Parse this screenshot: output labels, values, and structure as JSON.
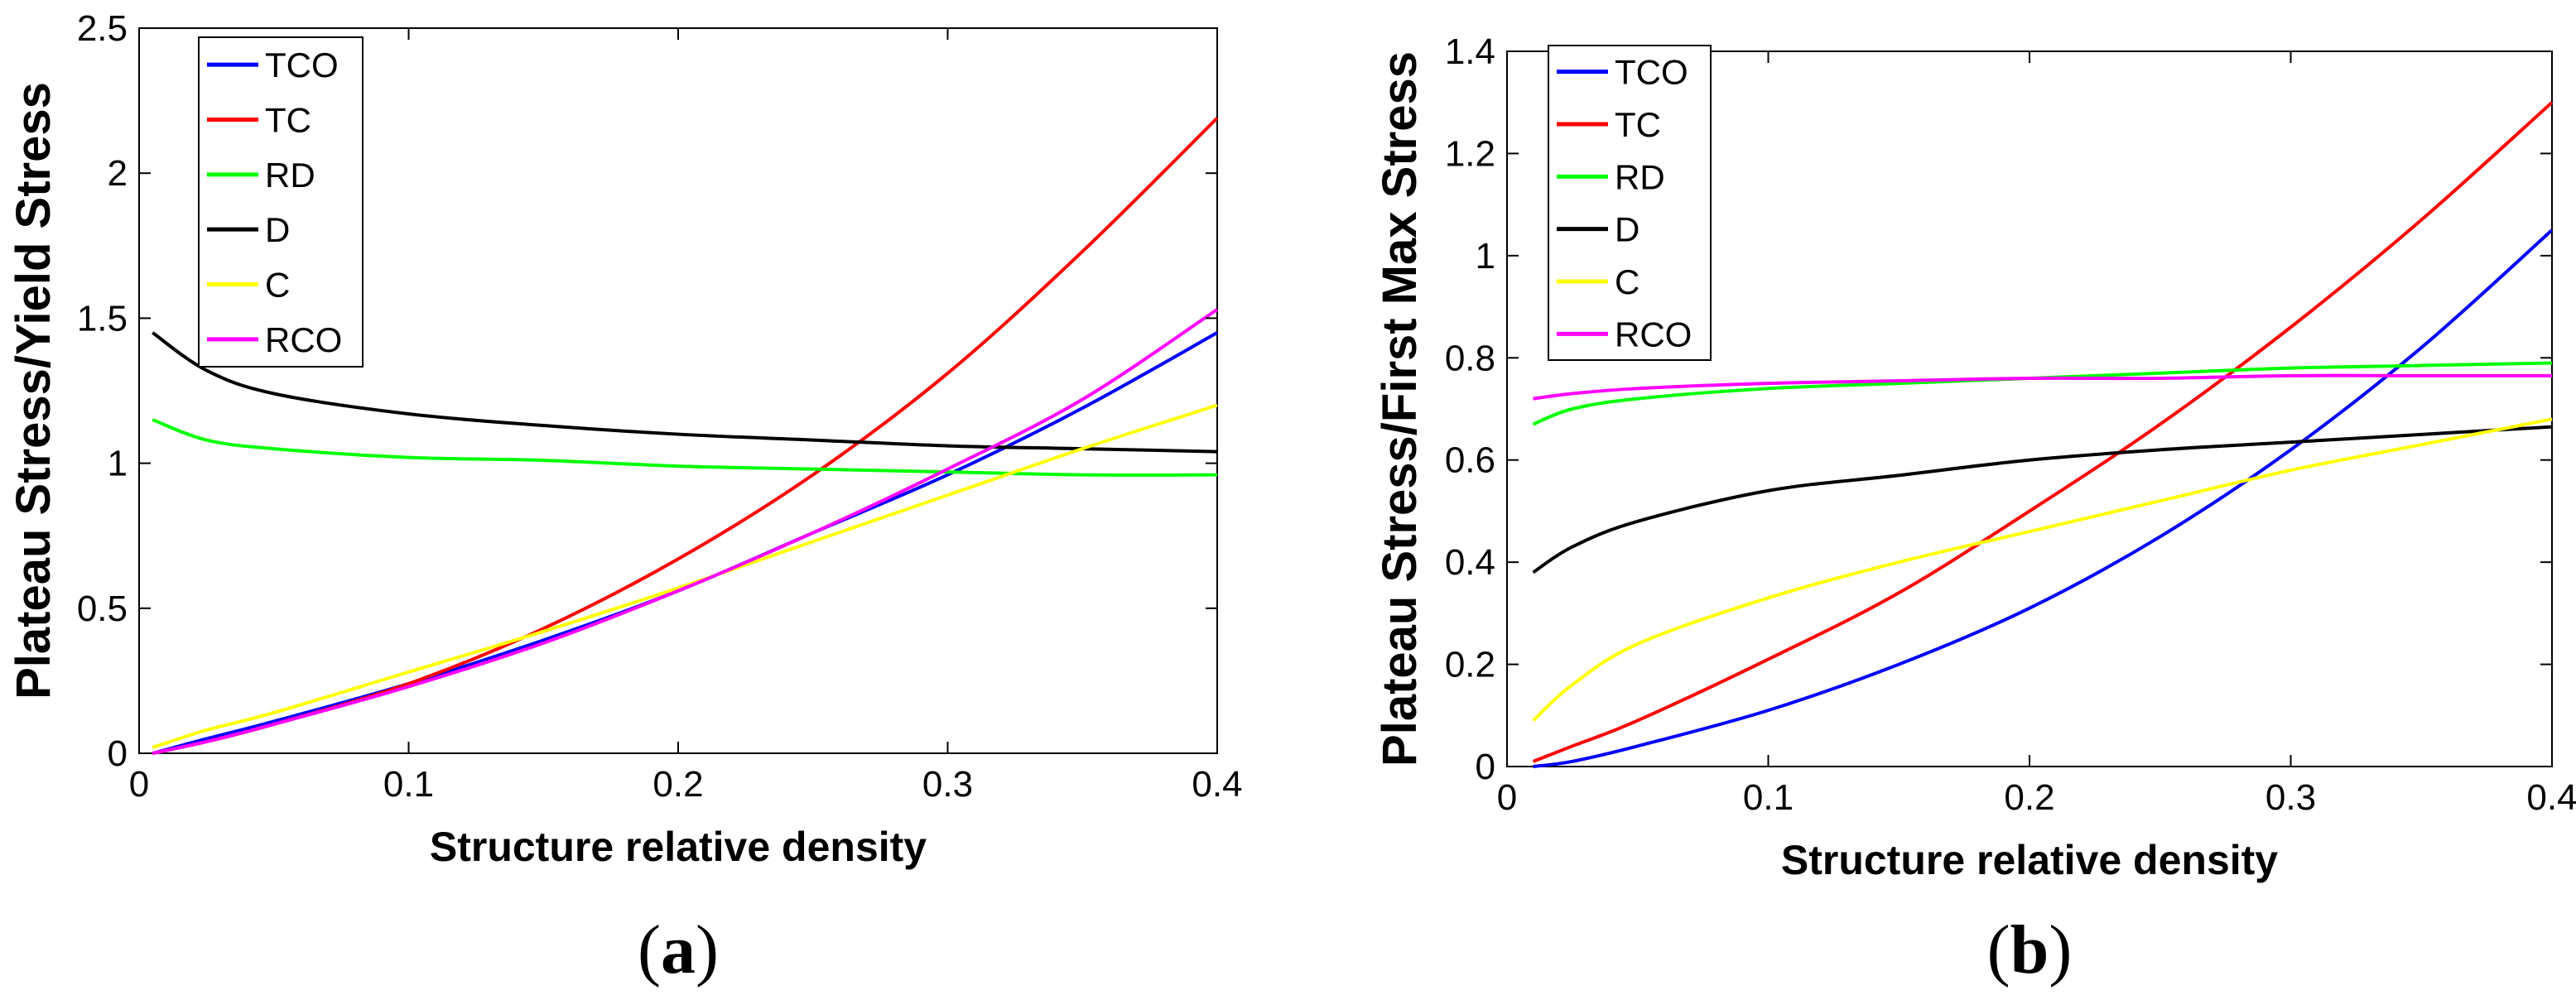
{
  "colors": {
    "TCO": "#0000ff",
    "TC": "#ff0000",
    "RD": "#00ff00",
    "D": "#000000",
    "C": "#ffff00",
    "RCO": "#ff00ff"
  },
  "chart_data": [
    {
      "type": "line",
      "panel_label": "(a)",
      "panel_letter": "a",
      "xlabel": "Structure relative density",
      "ylabel": "Plateau Stress/Yield Stress",
      "xlim": [
        0,
        0.4
      ],
      "ylim": [
        0,
        2.5
      ],
      "xticks": [
        "0",
        "0.1",
        "0.2",
        "0.3",
        "0.4"
      ],
      "xtick_values": [
        0,
        0.1,
        0.2,
        0.3,
        0.4
      ],
      "yticks": [
        "0",
        "0.5",
        "1",
        "1.5",
        "2",
        "2.5"
      ],
      "ytick_values": [
        0,
        0.5,
        1,
        1.5,
        2,
        2.5
      ],
      "grid": false,
      "legend_position": "top-left",
      "x": [
        0.005,
        0.025,
        0.05,
        0.1,
        0.15,
        0.2,
        0.25,
        0.3,
        0.35,
        0.4
      ],
      "series": [
        {
          "name": "TCO",
          "values": [
            0.0,
            0.05,
            0.11,
            0.24,
            0.39,
            0.56,
            0.76,
            0.96,
            1.19,
            1.45
          ]
        },
        {
          "name": "TC",
          "values": [
            0.0,
            0.04,
            0.1,
            0.24,
            0.43,
            0.67,
            0.96,
            1.31,
            1.73,
            2.19
          ]
        },
        {
          "name": "RD",
          "values": [
            1.15,
            1.08,
            1.05,
            1.02,
            1.01,
            0.99,
            0.98,
            0.97,
            0.96,
            0.96
          ]
        },
        {
          "name": "D",
          "values": [
            1.45,
            1.32,
            1.24,
            1.17,
            1.13,
            1.1,
            1.08,
            1.06,
            1.05,
            1.04
          ]
        },
        {
          "name": "C",
          "values": [
            0.02,
            0.08,
            0.14,
            0.28,
            0.42,
            0.57,
            0.73,
            0.89,
            1.05,
            1.2
          ]
        },
        {
          "name": "RCO",
          "values": [
            0.0,
            0.04,
            0.1,
            0.23,
            0.38,
            0.56,
            0.76,
            0.98,
            1.22,
            1.53
          ]
        }
      ]
    },
    {
      "type": "line",
      "panel_label": "(b)",
      "panel_letter": "b",
      "xlabel": "Structure relative density",
      "ylabel": "Plateau Stress/First Max Stress",
      "xlim": [
        0,
        0.4
      ],
      "ylim": [
        0,
        1.4
      ],
      "xticks": [
        "0",
        "0.1",
        "0.2",
        "0.3",
        "0.4"
      ],
      "xtick_values": [
        0,
        0.1,
        0.2,
        0.3,
        0.4
      ],
      "yticks": [
        "0",
        "0.2",
        "0.4",
        "0.6",
        "0.8",
        "1",
        "1.2",
        "1.4"
      ],
      "ytick_values": [
        0,
        0.2,
        0.4,
        0.6,
        0.8,
        1.0,
        1.2,
        1.4
      ],
      "grid": false,
      "legend_position": "top-left",
      "x": [
        0.01,
        0.025,
        0.05,
        0.1,
        0.15,
        0.2,
        0.25,
        0.3,
        0.35,
        0.4
      ],
      "series": [
        {
          "name": "TCO",
          "values": [
            0.0,
            0.01,
            0.04,
            0.11,
            0.2,
            0.31,
            0.45,
            0.62,
            0.82,
            1.05
          ]
        },
        {
          "name": "TC",
          "values": [
            0.01,
            0.04,
            0.09,
            0.21,
            0.34,
            0.5,
            0.67,
            0.86,
            1.07,
            1.3
          ]
        },
        {
          "name": "RD",
          "values": [
            0.67,
            0.7,
            0.72,
            0.74,
            0.75,
            0.76,
            0.77,
            0.78,
            0.785,
            0.79
          ]
        },
        {
          "name": "D",
          "values": [
            0.38,
            0.43,
            0.48,
            0.54,
            0.57,
            0.6,
            0.62,
            0.635,
            0.65,
            0.665
          ]
        },
        {
          "name": "C",
          "values": [
            0.09,
            0.16,
            0.24,
            0.33,
            0.4,
            0.46,
            0.52,
            0.58,
            0.63,
            0.68
          ]
        },
        {
          "name": "RCO",
          "values": [
            0.72,
            0.73,
            0.74,
            0.75,
            0.755,
            0.76,
            0.76,
            0.765,
            0.765,
            0.765
          ]
        }
      ]
    }
  ]
}
